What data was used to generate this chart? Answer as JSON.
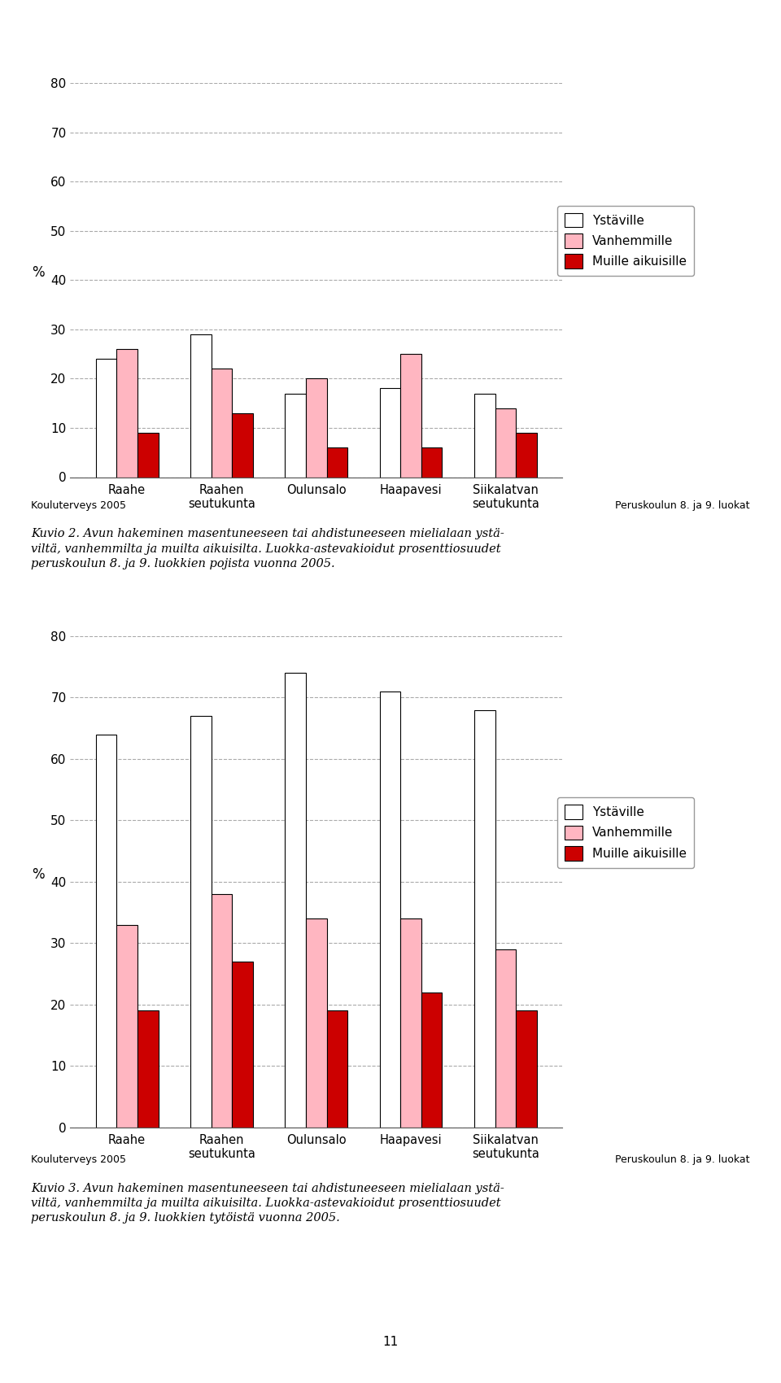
{
  "chart1": {
    "categories": [
      "Raahe",
      "Raahen\nseutukunta",
      "Oulunsalo",
      "Haapavesi",
      "Siikalatvan\nseutukunta"
    ],
    "ystaville": [
      24,
      29,
      17,
      18,
      17
    ],
    "vanhemmille": [
      26,
      22,
      20,
      25,
      14
    ],
    "muille_aikuisille": [
      9,
      13,
      6,
      6,
      9
    ],
    "ylim": [
      0,
      80
    ],
    "yticks": [
      0,
      10,
      20,
      30,
      40,
      50,
      60,
      70,
      80
    ]
  },
  "chart2": {
    "categories": [
      "Raahe",
      "Raahen\nseutukunta",
      "Oulunsalo",
      "Haapavesi",
      "Siikalatvan\nseutukunta"
    ],
    "ystaville": [
      64,
      67,
      74,
      71,
      68
    ],
    "vanhemmille": [
      33,
      38,
      34,
      34,
      29
    ],
    "muille_aikuisille": [
      19,
      27,
      19,
      22,
      19
    ],
    "ylim": [
      0,
      80
    ],
    "yticks": [
      0,
      10,
      20,
      30,
      40,
      50,
      60,
      70,
      80
    ]
  },
  "colors": {
    "ystaville": "#ffffff",
    "vanhemmille": "#ffb6c1",
    "muille_aikuisille": "#cc0000",
    "bar_edge": "#000000"
  },
  "ylabel": "% ",
  "footer_left": "Kouluterveys 2005",
  "footer_right": "Peruskoulun 8. ja 9. luokat",
  "caption1": "Kuvio 2. Avun hakeminen masentuneeseen tai ahdistuneeseen mielialaan ystä-\nviltä, vanhemmilta ja muilta aikuisilta. Luokka-astevakioidut prosenttiosuudet\nperuskoulun 8. ja 9. luokkien pojista vuonna 2005.",
  "caption2": "Kuvio 3. Avun hakeminen masentuneeseen tai ahdistuneeseen mielialaan ystä-\nviltä, vanhemmilta ja muilta aikuisilta. Luokka-astevakioidut prosenttiosuudet\nperuskoulun 8. ja 9. luokkien tytöistä vuonna 2005.",
  "legend_labels": [
    "Ystäville",
    "Vanhemmille",
    "Muille aikuisille"
  ],
  "page_number": "11",
  "background_color": "#ffffff",
  "bar_width": 0.22
}
